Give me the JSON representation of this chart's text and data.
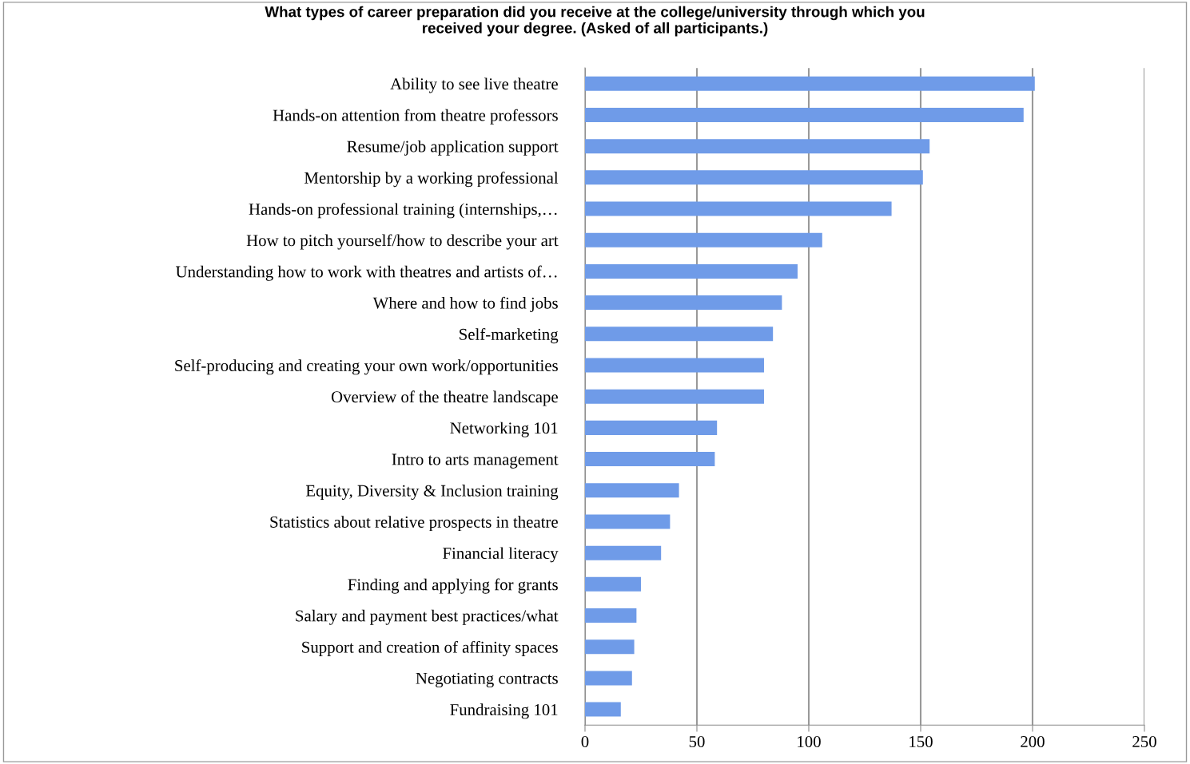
{
  "chart_data": {
    "type": "bar",
    "orientation": "horizontal",
    "title": "What types of career preparation did you receive at the college/university through which you\nreceived your degree. (Asked of all participants.)",
    "categories": [
      "Ability to see live theatre",
      "Hands-on attention from theatre professors",
      "Resume/job application support",
      "Mentorship by a working professional",
      "Hands-on professional training (internships,…",
      "How to pitch yourself/how to describe your art",
      "Understanding how to work with theatres and artists of…",
      "Where and how to find jobs",
      "Self-marketing",
      "Self-producing and creating your own work/opportunities",
      "Overview of the theatre landscape",
      "Networking 101",
      "Intro to arts management",
      "Equity, Diversity & Inclusion training",
      "Statistics about relative prospects in theatre",
      "Financial literacy",
      "Finding and applying for grants",
      "Salary and payment best practices/what",
      "Support and creation of affinity spaces",
      "Negotiating contracts",
      "Fundraising 101"
    ],
    "values": [
      201,
      196,
      154,
      151,
      137,
      106,
      95,
      88,
      84,
      80,
      80,
      59,
      58,
      42,
      38,
      34,
      25,
      23,
      22,
      21,
      16
    ],
    "color": "#6f9be8",
    "xlim": [
      0,
      250
    ],
    "xticks": [
      0,
      50,
      100,
      150,
      200,
      250
    ],
    "grid": "x",
    "legend": false
  }
}
